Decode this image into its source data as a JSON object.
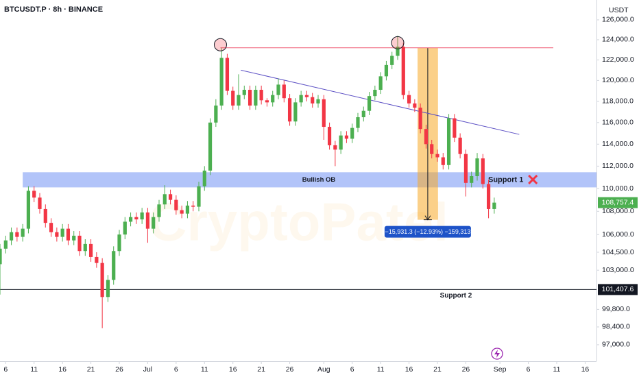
{
  "chart_data": {
    "type": "candlestick",
    "title": "BTCUSDT.P · 8h · BINANCE",
    "currency": "USDT",
    "watermark": "CryptoPatel",
    "up_color": "#4caf50",
    "down_color": "#f23645",
    "log_scale": true,
    "xlim": [
      5,
      110
    ],
    "ylim": [
      95720,
      128030
    ],
    "xticks": [
      6,
      11,
      16,
      21,
      26,
      {
        "value": 31,
        "label": "Jul"
      },
      {
        "value": 36,
        "label": "6"
      },
      {
        "value": 41,
        "label": "11"
      },
      {
        "value": 46,
        "label": "16"
      },
      {
        "value": 51,
        "label": "21"
      },
      {
        "value": 56,
        "label": "26"
      },
      {
        "value": 62,
        "label": "Aug"
      },
      {
        "value": 67,
        "label": "6"
      },
      {
        "value": 72,
        "label": "11"
      },
      {
        "value": 77,
        "label": "16"
      },
      {
        "value": 82,
        "label": "21"
      },
      {
        "value": 87,
        "label": "26"
      },
      {
        "value": 93,
        "label": "Sep"
      },
      {
        "value": 98,
        "label": "6"
      },
      {
        "value": 103,
        "label": "11"
      },
      {
        "value": 108,
        "label": "16"
      }
    ],
    "yticks": [
      {
        "value": 126000,
        "label": "126,000.0"
      },
      {
        "value": 124000,
        "label": "124,000.0"
      },
      {
        "value": 122000,
        "label": "122,000.0"
      },
      {
        "value": 120000,
        "label": "120,000.0"
      },
      {
        "value": 118000,
        "label": "118,000.0"
      },
      {
        "value": 116000,
        "label": "116,000.0"
      },
      {
        "value": 114000,
        "label": "114,000.0"
      },
      {
        "value": 112000,
        "label": "112,000.0"
      },
      {
        "value": 110000,
        "label": "110,000.0"
      },
      {
        "value": 108000,
        "label": "108,000.0"
      },
      {
        "value": 106000,
        "label": "106,000.0"
      },
      {
        "value": 104500,
        "label": "104,500.0"
      },
      {
        "value": 103000,
        "label": "103,000.0"
      },
      {
        "value": 99800,
        "label": "99,800.0"
      },
      {
        "value": 98400,
        "label": "98,400.0"
      },
      {
        "value": 97000,
        "label": "97,000.0"
      }
    ],
    "x": [
      5,
      6,
      7,
      8,
      9,
      10,
      11,
      12,
      13,
      14,
      15,
      16,
      17,
      18,
      19,
      20,
      21,
      22,
      23,
      24,
      25,
      26,
      27,
      28,
      29,
      30,
      31,
      32,
      33,
      34,
      35,
      36,
      37,
      38,
      39,
      40,
      41,
      42,
      43,
      44,
      45,
      46,
      47,
      48,
      49,
      50,
      51,
      52,
      53,
      54,
      55,
      56,
      57,
      58,
      59,
      60,
      61,
      62,
      63,
      64,
      65,
      66,
      67,
      68,
      69,
      70,
      71,
      72,
      73,
      74,
      75,
      76,
      77,
      78,
      79,
      80,
      81,
      82,
      83,
      84,
      85,
      86,
      87,
      88,
      89,
      90,
      91,
      92
    ],
    "open": [
      103500,
      104800,
      105500,
      106200,
      105800,
      106500,
      109800,
      109200,
      108200,
      107000,
      106200,
      105800,
      106500,
      105500,
      105900,
      104600,
      105200,
      104100,
      103600,
      100800,
      102200,
      104600,
      106000,
      107100,
      107500,
      107300,
      107900,
      106500,
      107500,
      108600,
      109500,
      109000,
      108100,
      107800,
      108500,
      108400,
      110200,
      111600,
      116000,
      117600,
      122200,
      119000,
      117600,
      118600,
      119100,
      117600,
      119100,
      118100,
      117900,
      118600,
      119600,
      118300,
      116100,
      117900,
      118600,
      118400,
      117800,
      118200,
      115600,
      113900,
      113500,
      114800,
      114500,
      115500,
      116500,
      117100,
      118500,
      119100,
      120400,
      121500,
      122400,
      123300,
      118600,
      117800,
      117400,
      115400,
      114000,
      113100,
      112800,
      112100,
      116400,
      114600,
      113100,
      110500,
      111100,
      112700,
      110400,
      108200
    ],
    "high": [
      105200,
      105900,
      106600,
      106600,
      106900,
      110200,
      110200,
      109600,
      108600,
      107400,
      106600,
      106900,
      106900,
      106300,
      106300,
      105600,
      105600,
      104500,
      104000,
      102600,
      105000,
      106400,
      107500,
      107900,
      107900,
      108300,
      108300,
      107900,
      109000,
      110300,
      109900,
      109400,
      108500,
      108900,
      108900,
      110600,
      112000,
      116400,
      118200,
      123200,
      122600,
      119400,
      120600,
      119500,
      119500,
      119500,
      119500,
      118300,
      119000,
      120200,
      120000,
      118700,
      118300,
      119000,
      119000,
      118800,
      118600,
      118600,
      116000,
      114300,
      115200,
      115200,
      115900,
      116900,
      117500,
      118900,
      119500,
      120800,
      121900,
      122800,
      124400,
      123700,
      119000,
      118200,
      117800,
      115800,
      114400,
      113500,
      113200,
      116800,
      116800,
      115000,
      113500,
      111500,
      113200,
      113100,
      110800,
      109200
    ],
    "low": [
      101000,
      104400,
      105100,
      105400,
      105400,
      106100,
      108800,
      107800,
      106600,
      105800,
      105400,
      105400,
      105100,
      105100,
      104200,
      104200,
      103700,
      103200,
      98300,
      100400,
      101800,
      104200,
      105600,
      106700,
      106900,
      106900,
      105300,
      106100,
      107100,
      108200,
      108600,
      107700,
      107400,
      107400,
      108000,
      108000,
      109800,
      111200,
      115600,
      117200,
      118600,
      117200,
      117200,
      118200,
      117200,
      117200,
      117700,
      117500,
      117500,
      118200,
      117900,
      115700,
      115700,
      117500,
      118000,
      117400,
      117400,
      114400,
      113500,
      112000,
      113100,
      114100,
      114100,
      115100,
      116100,
      116700,
      118100,
      118700,
      120000,
      121100,
      122000,
      118200,
      117400,
      117000,
      115000,
      113600,
      112700,
      112400,
      111700,
      111700,
      114200,
      112700,
      109300,
      110100,
      110700,
      110000,
      107400,
      107800
    ],
    "close": [
      104800,
      105500,
      106200,
      105800,
      106500,
      109800,
      109200,
      108200,
      107000,
      106200,
      105800,
      106500,
      105500,
      105900,
      104600,
      105200,
      104100,
      103600,
      100800,
      102200,
      104600,
      106000,
      107100,
      107500,
      107300,
      107900,
      106500,
      107500,
      108600,
      109500,
      109000,
      108100,
      107800,
      108500,
      108400,
      110200,
      111600,
      116000,
      117600,
      122200,
      119000,
      117600,
      118600,
      119100,
      117600,
      119100,
      118100,
      117900,
      118600,
      119600,
      118300,
      116100,
      117900,
      118600,
      118400,
      117800,
      118200,
      115600,
      113900,
      113500,
      114800,
      114500,
      115500,
      116500,
      117100,
      118500,
      119100,
      120400,
      121500,
      122400,
      123300,
      118600,
      117800,
      117400,
      115400,
      114000,
      113100,
      112800,
      112100,
      116400,
      114600,
      113100,
      110500,
      111100,
      112700,
      110400,
      108200,
      108757.4
    ],
    "annotations": {
      "bullish_ob": {
        "label": "Bullish OB",
        "low": 110100,
        "high": 111450,
        "x": [
          9,
          110
        ]
      },
      "support_1": {
        "label": "Support 1"
      },
      "support_2": {
        "label": "Support 2",
        "price": 101407.6,
        "price_label": "101,407.6"
      },
      "resistance": {
        "price": 123200,
        "x": [
          43.8,
          102.4
        ]
      },
      "trendline": {
        "x": [
          47.4,
          96.4
        ],
        "y": [
          121000,
          114900
        ]
      },
      "peaks": {
        "x": [
          43.8,
          75
        ],
        "y": [
          123500,
          123700
        ]
      },
      "measure": {
        "x": [
          78.5,
          82.1
        ],
        "y": [
          123200,
          107268.7
        ],
        "label": "−15,931.3 (−12.93%) −159,313"
      },
      "x_mark": {
        "x": 98.8,
        "y": 110800
      },
      "last_price": {
        "value": 108757.4,
        "label": "108,757.4"
      }
    }
  }
}
